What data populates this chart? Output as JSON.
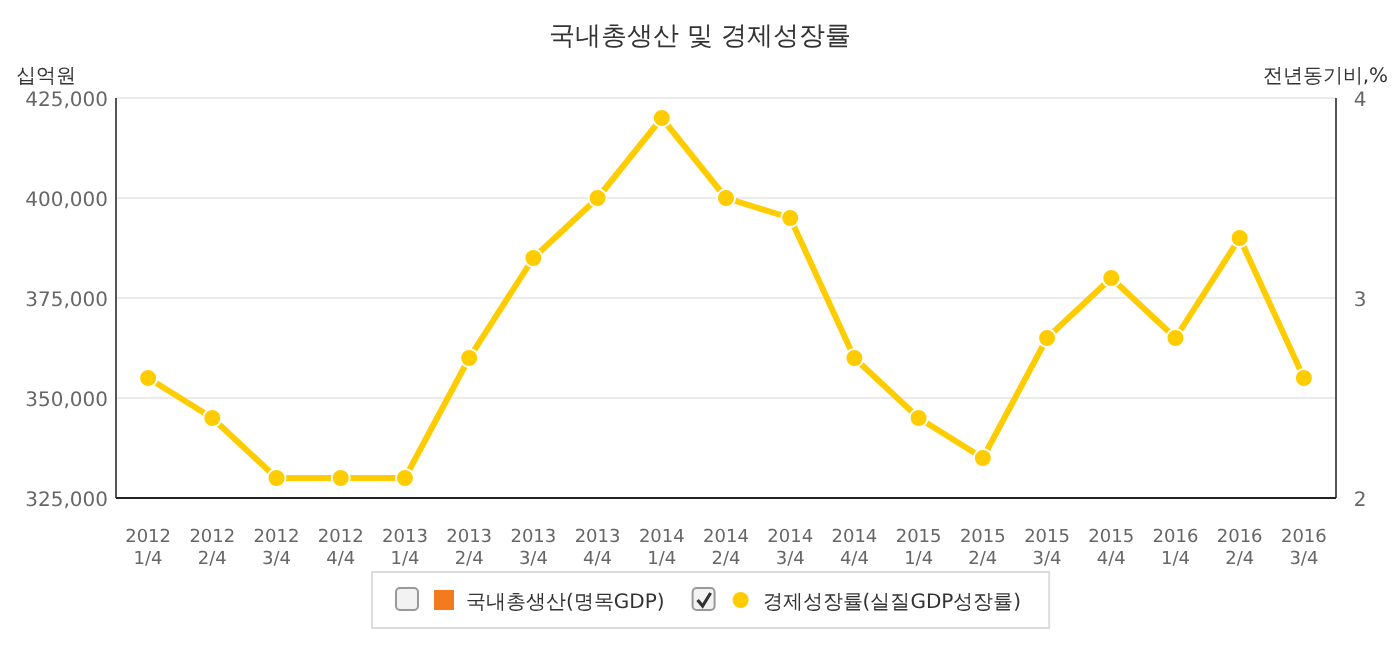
{
  "chart_data": {
    "type": "line",
    "title": "국내총생산 및 경제성장률",
    "ylabel": "십억원",
    "y2label": "전년동기비,%",
    "categories": [
      "2012\n1/4",
      "2012\n2/4",
      "2012\n3/4",
      "2012\n4/4",
      "2013\n1/4",
      "2013\n2/4",
      "2013\n3/4",
      "2013\n4/4",
      "2014\n1/4",
      "2014\n2/4",
      "2014\n3/4",
      "2014\n4/4",
      "2015\n1/4",
      "2015\n2/4",
      "2015\n3/4",
      "2015\n4/4",
      "2016\n1/4",
      "2016\n2/4",
      "2016\n3/4"
    ],
    "series": [
      {
        "name": "국내총생산(명목GDP)",
        "color": "#f47a20",
        "type": "bar",
        "values": [
          null,
          null,
          null,
          null,
          null,
          null,
          null,
          null,
          null,
          null,
          null,
          null,
          null,
          null,
          null,
          null,
          null,
          null,
          null
        ]
      },
      {
        "name": "경제성장률(실질GDP성장률)",
        "color": "#ffcc00",
        "axis": "y2",
        "values": [
          2.6,
          2.4,
          2.1,
          2.1,
          2.1,
          2.7,
          3.2,
          3.5,
          3.9,
          3.5,
          3.4,
          2.7,
          2.4,
          2.2,
          2.8,
          3.1,
          2.8,
          3.3,
          2.6
        ]
      }
    ],
    "ylim": [
      325000,
      425000
    ],
    "yticks": [
      {
        "value": 325000,
        "label": "325,000"
      },
      {
        "value": 350000,
        "label": "350,000"
      },
      {
        "value": 375000,
        "label": "375,000"
      },
      {
        "value": 400000,
        "label": "400,000"
      },
      {
        "value": 425000,
        "label": "425,000"
      }
    ],
    "y2lim": [
      2,
      4
    ],
    "y2ticks": [
      2,
      3,
      4
    ],
    "grid": "y",
    "legend": "bottom",
    "marker": "circle",
    "line_style": "solid"
  }
}
